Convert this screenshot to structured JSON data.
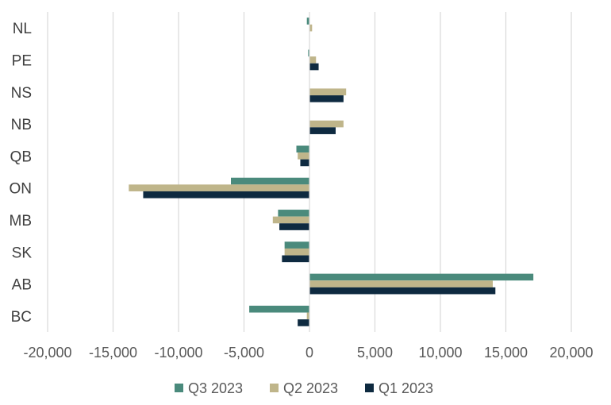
{
  "chart_data": {
    "type": "bar",
    "orientation": "horizontal",
    "categories": [
      "NL",
      "PE",
      "NS",
      "NB",
      "QB",
      "ON",
      "MB",
      "SK",
      "AB",
      "BC"
    ],
    "series": [
      {
        "name": "Q3 2023",
        "color": "#4a8a7c",
        "values": [
          -200,
          -100,
          0,
          0,
          -1000,
          -6000,
          -2400,
          -1900,
          17100,
          -4600
        ]
      },
      {
        "name": "Q2 2023",
        "color": "#bfb58a",
        "values": [
          200,
          500,
          2800,
          2600,
          -900,
          -13800,
          -2800,
          -1900,
          14000,
          -200
        ]
      },
      {
        "name": "Q1 2023",
        "color": "#0e2a40",
        "values": [
          0,
          700,
          2600,
          2000,
          -700,
          -12700,
          -2300,
          -2100,
          14200,
          -900
        ]
      }
    ],
    "xlim": [
      -20000,
      20000
    ],
    "xticks": [
      -20000,
      -15000,
      -10000,
      -5000,
      0,
      5000,
      10000,
      15000,
      20000
    ],
    "xtick_labels": [
      "-20,000",
      "-15,000",
      "-10,000",
      "-5,000",
      "0",
      "5,000",
      "10,000",
      "15,000",
      "20,000"
    ],
    "grid": "vertical",
    "legend_position": "bottom"
  }
}
